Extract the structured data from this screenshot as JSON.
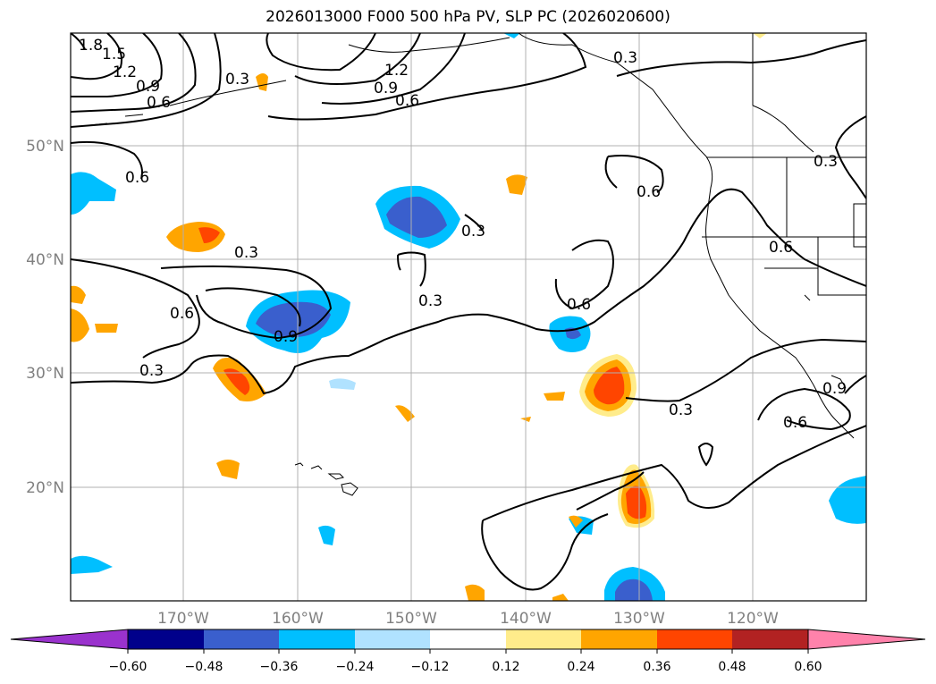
{
  "title": "2026013000 F000 500 hPa PV, SLP PC (2026020600)",
  "map": {
    "lat_labels": [
      "50°N",
      "40°N",
      "30°N",
      "20°N"
    ],
    "lon_labels": [
      "170°W",
      "160°W",
      "150°W",
      "140°W",
      "130°W",
      "120°W"
    ],
    "contour_labels": [
      "1.8",
      "1.5",
      "1.2",
      "0.9",
      "0.6",
      "0.3",
      "1.2",
      "0.9",
      "0.6",
      "0.3",
      "0.6",
      "0.6",
      "0.3",
      "0.3",
      "0.3",
      "0.6",
      "0.6",
      "0.9",
      "0.3",
      "0.3",
      "0.6",
      "0.9",
      "0.3",
      "0.6"
    ]
  },
  "colorbar": {
    "ticks": [
      "−0.60",
      "−0.48",
      "−0.36",
      "−0.24",
      "−0.12",
      "0.12",
      "0.24",
      "0.36",
      "0.48",
      "0.60"
    ],
    "colors": [
      "#9a32cd",
      "#00008b",
      "#3a5fcd",
      "#00bfff",
      "#b0e2ff",
      "#ffffff",
      "#ffec8b",
      "#ffa500",
      "#ff4500",
      "#b22222",
      "#ff82ab"
    ]
  },
  "shading_colors": {
    "neg_strong": "#3a5fcd",
    "neg_mid": "#00bfff",
    "neg_weak": "#b0e2ff",
    "pos_weak": "#ffec8b",
    "pos_mid": "#ffa500",
    "pos_strong": "#ff4500"
  }
}
